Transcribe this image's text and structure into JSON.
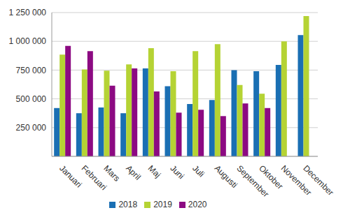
{
  "chart_data": {
    "type": "bar",
    "categories": [
      "Januari",
      "Februari",
      "Mars",
      "April",
      "Maj",
      "Juni",
      "Juli",
      "Augusti",
      "September",
      "Oktober",
      "November",
      "December"
    ],
    "series": [
      {
        "name": "2018",
        "color": "#1a6fb3",
        "values": [
          420000,
          375000,
          425000,
          375000,
          765000,
          610000,
          455000,
          490000,
          750000,
          740000,
          795000,
          1055000
        ]
      },
      {
        "name": "2019",
        "color": "#b5d334",
        "values": [
          885000,
          755000,
          745000,
          800000,
          940000,
          740000,
          915000,
          975000,
          620000,
          545000,
          1000000,
          1220000
        ]
      },
      {
        "name": "2020",
        "color": "#8c0a82",
        "values": [
          960000,
          915000,
          615000,
          765000,
          565000,
          380000,
          405000,
          350000,
          460000,
          420000,
          null,
          null
        ]
      }
    ],
    "ylim": [
      0,
      1250000
    ],
    "yticks": [
      {
        "value": 250000,
        "label": "250 000"
      },
      {
        "value": 500000,
        "label": "500 000"
      },
      {
        "value": 750000,
        "label": "750 000"
      },
      {
        "value": 1000000,
        "label": "1 000 000"
      },
      {
        "value": 1250000,
        "label": "1 250 000"
      }
    ],
    "grid": true,
    "legend": "bottom"
  }
}
